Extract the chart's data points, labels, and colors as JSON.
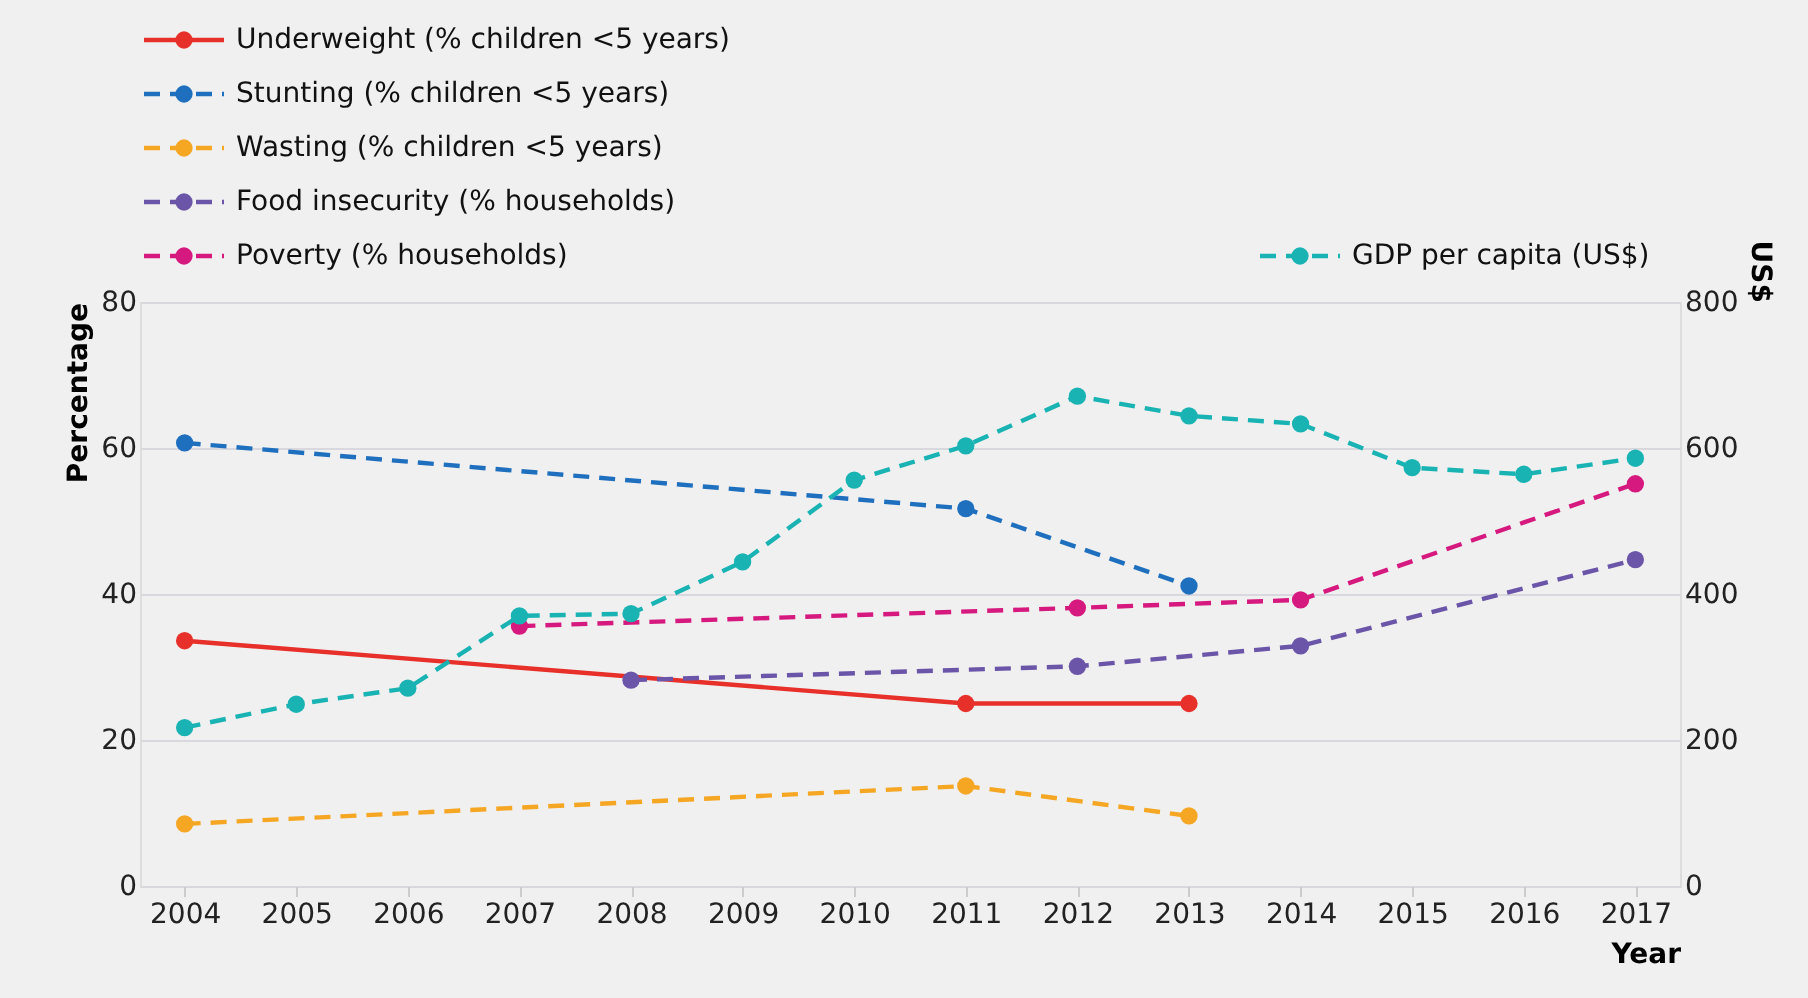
{
  "chart_data": {
    "type": "line",
    "xlabel": "Year",
    "ylabel": "Percentage",
    "y2label": "US$",
    "xlim": [
      2003.6,
      2017.4
    ],
    "xticks": [
      2004,
      2005,
      2006,
      2007,
      2008,
      2009,
      2010,
      2011,
      2012,
      2013,
      2014,
      2015,
      2016,
      2017
    ],
    "ylim": [
      0,
      80
    ],
    "yticks": [
      0,
      20,
      40,
      60,
      80
    ],
    "y2lim": [
      0,
      800
    ],
    "y2ticks": [
      0,
      200,
      400,
      600,
      800
    ],
    "grid": "y",
    "legend": "top",
    "marker": "circle",
    "series": [
      {
        "name": "Underweight (% children <5 years)",
        "color": "#e8302a",
        "line_style": "solid",
        "x": [
          2004,
          2011,
          2013
        ],
        "values": [
          33.6,
          25,
          25
        ]
      },
      {
        "name": "Stunting (% children <5 years)",
        "color": "#1f6fbf",
        "line_style": "dashed",
        "x": [
          2004,
          2011,
          2013
        ],
        "values": [
          60.7,
          51.7,
          41.1
        ]
      },
      {
        "name": "Wasting (% children <5 years)",
        "color": "#f5a623",
        "line_style": "dashed",
        "x": [
          2004,
          2011,
          2013
        ],
        "values": [
          8.5,
          13.7,
          9.6
        ]
      },
      {
        "name": "Food insecurity (% households)",
        "color": "#6a55a8",
        "line_style": "dashed",
        "x": [
          2008,
          2012,
          2014,
          2017
        ],
        "values": [
          28.2,
          30.1,
          32.9,
          44.7
        ]
      },
      {
        "name": "Poverty (% households)",
        "color": "#d6197e",
        "line_style": "dashed",
        "x": [
          2007,
          2012,
          2014,
          2017
        ],
        "values": [
          35.6,
          38.1,
          39.2,
          55.1
        ]
      },
      {
        "name": "GDP per capita (US$)",
        "color": "#1ab3b3",
        "line_style": "dashed",
        "axis": "y2",
        "x": [
          2004,
          2005,
          2006,
          2007,
          2008,
          2009,
          2010,
          2011,
          2012,
          2013,
          2014,
          2015,
          2016,
          2017
        ],
        "values": [
          217,
          249,
          271,
          370,
          373,
          444,
          556,
          603,
          671,
          644,
          633,
          573,
          564,
          586
        ]
      }
    ]
  }
}
